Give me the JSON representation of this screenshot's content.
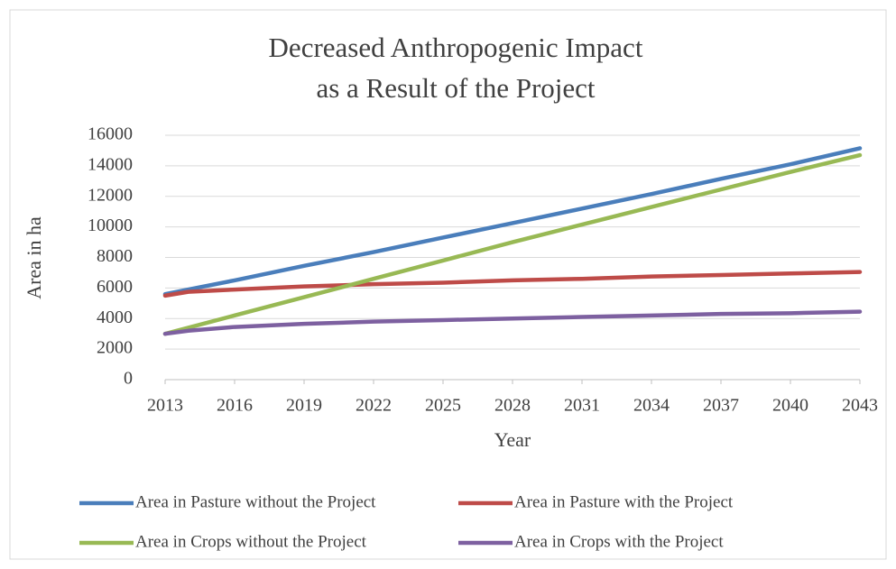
{
  "chart_data": {
    "type": "line",
    "title": [
      "Decreased Anthropogenic Impact",
      "as a Result of the Project"
    ],
    "x_label": "Year",
    "y_label": "Area in ha",
    "x": [
      2013,
      2014,
      2016,
      2019,
      2022,
      2025,
      2028,
      2031,
      2034,
      2037,
      2040,
      2043
    ],
    "series": [
      {
        "name": "Area in Pasture without the Project",
        "color": "#4a7ebb",
        "values": [
          5600,
          5900,
          6500,
          7450,
          8350,
          9300,
          10250,
          11200,
          12150,
          13150,
          14100,
          15150
        ]
      },
      {
        "name": "Area in Pasture with the Project",
        "color": "#be4b48",
        "values": [
          5500,
          5750,
          5900,
          6100,
          6250,
          6350,
          6500,
          6600,
          6750,
          6850,
          6950,
          7050
        ]
      },
      {
        "name": "Area in Crops without the Project",
        "color": "#98b954",
        "values": [
          3000,
          3400,
          4200,
          5400,
          6600,
          7800,
          9000,
          10150,
          11300,
          12450,
          13600,
          14700
        ]
      },
      {
        "name": "Area in Crops with the Project",
        "color": "#7d60a0",
        "values": [
          3000,
          3200,
          3450,
          3650,
          3800,
          3900,
          4000,
          4100,
          4200,
          4300,
          4350,
          4450
        ]
      }
    ],
    "xlim": [
      2013,
      2043
    ],
    "xticks": [
      2013,
      2016,
      2019,
      2022,
      2025,
      2028,
      2031,
      2034,
      2037,
      2040,
      2043
    ],
    "ylim": [
      0,
      16000
    ],
    "yticks": [
      0,
      2000,
      4000,
      6000,
      8000,
      10000,
      12000,
      14000,
      16000
    ],
    "grid": true,
    "legend": "bottom"
  }
}
